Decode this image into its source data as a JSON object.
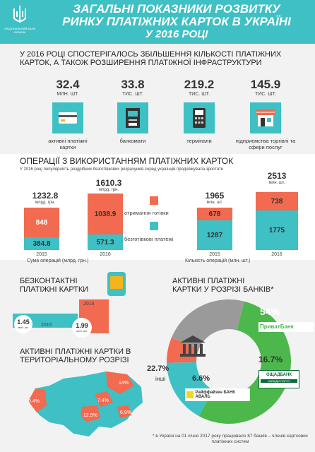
{
  "header": {
    "title_line1": "Загальні показники розвитку",
    "title_line2": "ринку платіжних карток в Україні",
    "title_line3": "у 2016 році",
    "logo_text": "НАЦІОНАЛЬНИЙ БАНК УКРАЇНИ"
  },
  "intro": {
    "text": "У 2016 році спостерігалось збільшення кількості платіжних карток, а також розширення платіжної інфраструктури"
  },
  "stats": [
    {
      "value": "32.4",
      "unit": "МЛН. ШТ.",
      "label": "активні платіжні картки",
      "icon": "card-icon"
    },
    {
      "value": "33.8",
      "unit": "ТИС. ШТ.",
      "label": "банкомати",
      "icon": "atm-icon"
    },
    {
      "value": "219.2",
      "unit": "ТИС. ШТ.",
      "label": "термінали",
      "icon": "terminal-icon"
    },
    {
      "value": "145.9",
      "unit": "ТИС. ШТ.",
      "label": "підприємства торгівлі та сфери послуг",
      "icon": "shop-icon"
    }
  ],
  "operations": {
    "title": "Операції з використанням платіжних карток",
    "subtitle": "У 2016 році популярність роздрібних безготівкових розрахунків серед українців продовжувала зростати",
    "legend_cash": "отримання готівки",
    "legend_cashless": "безготівкові платежі",
    "sum_label": "Сума операцій (млрд. грн.)",
    "count_label": "Кількість операцій (млн. шт.)",
    "sum_unit": "млрд. грн.",
    "count_unit": "млн. шт.",
    "sum_bars": [
      {
        "year": "2015",
        "total": "1232.8",
        "cash": "848",
        "cashless": "384.8"
      },
      {
        "year": "2016",
        "total": "1610.3",
        "cash": "1038.9",
        "cashless": "571.3"
      }
    ],
    "count_bars": [
      {
        "year": "2015",
        "total": "1965",
        "cash": "678",
        "cashless": "1287"
      },
      {
        "year": "2016",
        "total": "2513",
        "cash": "738",
        "cashless": "1775"
      }
    ]
  },
  "contactless": {
    "title_line1": "Безконтактні",
    "title_line2": "платіжні картки",
    "unit": "млн. шт.",
    "items": [
      {
        "year": "2015",
        "value": "1.45",
        "level": 0.45
      },
      {
        "year": "2016",
        "value": "1.99",
        "level": 1.0
      }
    ]
  },
  "banks": {
    "title_line1": "Активні платіжні",
    "title_line2": "картки у розрізі банків*",
    "segments": [
      {
        "label": "54%",
        "name": "ПриватБанк",
        "value": 54,
        "color": "#4cb74a"
      },
      {
        "label": "16.7%",
        "name": "Ощадбанк",
        "value": 16.7,
        "color": "#3fc0c4"
      },
      {
        "label": "6.6%",
        "name": "Райффайзен Банк Аваль",
        "value": 6.6,
        "color": "#f26a4f"
      },
      {
        "label": "22.7%",
        "name": "інші",
        "value": 22.7,
        "color": "#9a9a9a"
      }
    ],
    "others_label": "інші",
    "privat_logo": "ПриватБанк",
    "oschad_logo": "ОЩАДБАНК",
    "oschad_sub": "ЗАВЖДИ ПОРУЧ",
    "raif_logo": "Райффайзен БАНК АВАЛЬ"
  },
  "regions": {
    "title_line1": "Активні платіжні картки в",
    "title_line2": "територіальному розрізі",
    "labels": [
      "14%",
      "6.4%",
      "7.4%",
      "12.9%",
      "6.9%"
    ]
  },
  "footnote": "* в Україні на 01 січня 2017 року працювало 87 банків – членів карткових платіжних систем"
}
